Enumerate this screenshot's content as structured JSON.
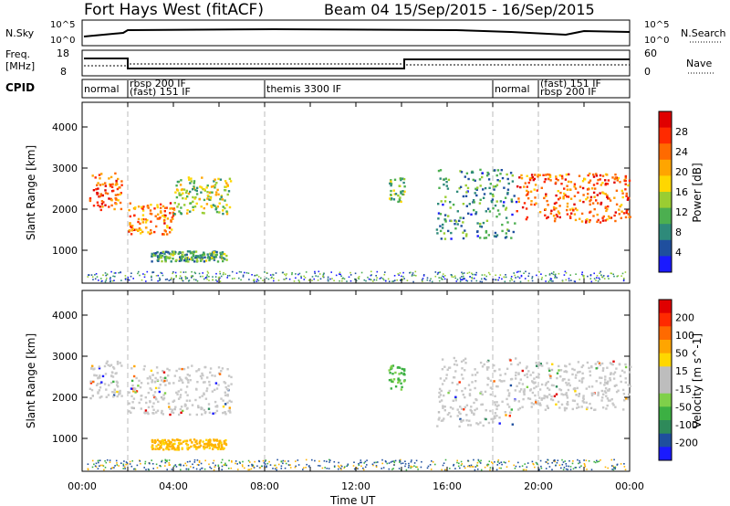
{
  "header": {
    "title": "Fort Hays West (fitACF)",
    "subtitle": "Beam 04  15/Sep/2015 - 16/Sep/2015"
  },
  "strips": {
    "nsky_label": "N.Sky",
    "nsearch_label": "N.Search",
    "left_ticks": [
      "10^5",
      "10^0"
    ],
    "right_ticks": [
      "10^5",
      "10^0"
    ],
    "freq_label": "Freq.",
    "freq_unit": "[MHz]",
    "freq_ticks": [
      "18",
      "8"
    ],
    "nave_ticks": [
      "60",
      "0"
    ],
    "nave_label": "Nave",
    "cpid_label": "CPID"
  },
  "cpid_segments": [
    {
      "label": "normal",
      "start": 0.0
    },
    {
      "label": "rbsp 200 IF",
      "start": 2.0
    },
    {
      "label": "(fast) 151 IF",
      "start": 2.0
    },
    {
      "label": "themis 3300 IF",
      "start": 8.0
    },
    {
      "label": "normal",
      "start": 18.0
    },
    {
      "label": "(fast) 151 IF",
      "start": 20.0
    },
    {
      "label": "rbsp 200 IF",
      "start": 20.0
    }
  ],
  "chart_data": [
    {
      "type": "heatmap",
      "name": "power",
      "ylabel": "Slant Range [km]",
      "xlabel": "Time UT",
      "ylim": [
        200,
        4600
      ],
      "xlim": [
        0,
        24
      ],
      "y_ticks": [
        1000,
        2000,
        3000,
        4000
      ],
      "colorbar": {
        "label": "Power [dB]",
        "ticks": [
          4,
          8,
          12,
          16,
          20,
          24,
          28
        ],
        "colors": [
          "#1a1aff",
          "#1f4f9e",
          "#2e8a7a",
          "#4caf50",
          "#9acd32",
          "#ffd700",
          "#ffa500",
          "#ff6a00",
          "#ff2a00",
          "#e00000"
        ]
      },
      "bands": [
        {
          "t": [
            0.3,
            1.7
          ],
          "range": [
            2000,
            2900
          ],
          "level": 0.8
        },
        {
          "t": [
            2.0,
            4.0
          ],
          "range": [
            1400,
            2200
          ],
          "level": 0.75
        },
        {
          "t": [
            4.0,
            6.5
          ],
          "range": [
            1900,
            2800
          ],
          "level": 0.45
        },
        {
          "t": [
            3.0,
            6.3
          ],
          "range": [
            750,
            1000
          ],
          "level": 0.3
        },
        {
          "t": [
            13.4,
            14.1
          ],
          "range": [
            2200,
            2800
          ],
          "level": 0.4
        },
        {
          "t": [
            15.5,
            19.0
          ],
          "range": [
            1300,
            3000
          ],
          "level": 0.25
        },
        {
          "t": [
            19.0,
            24.0
          ],
          "range": [
            1700,
            2900
          ],
          "level": 0.8
        }
      ]
    },
    {
      "type": "heatmap",
      "name": "velocity",
      "ylabel": "Slant Range [km]",
      "xlabel": "Time UT",
      "ylim": [
        200,
        4600
      ],
      "xlim": [
        0,
        24
      ],
      "y_ticks": [
        1000,
        2000,
        3000,
        4000
      ],
      "x_ticks": [
        "00:00",
        "04:00",
        "08:00",
        "12:00",
        "16:00",
        "20:00",
        "00:00"
      ],
      "colorbar": {
        "label": "Velocity [m s^-1]",
        "ticks": [
          "200",
          "100",
          "50",
          "15",
          "-15",
          "-50",
          "-100",
          "-200"
        ],
        "colors": [
          "#1a1aff",
          "#1f4f9e",
          "#2e8a5a",
          "#3cb043",
          "#7fd04a",
          "#bdbdbd",
          "#bdbdbd",
          "#ffd700",
          "#ffa500",
          "#ff6a00",
          "#ff2a00",
          "#e00000"
        ]
      },
      "bands": [
        {
          "t": [
            0.3,
            1.7
          ],
          "range": [
            2000,
            2900
          ],
          "level": "grey"
        },
        {
          "t": [
            2.0,
            6.5
          ],
          "range": [
            1600,
            2800
          ],
          "level": "grey"
        },
        {
          "t": [
            3.0,
            6.3
          ],
          "range": [
            750,
            1000
          ],
          "level": "orange"
        },
        {
          "t": [
            13.4,
            14.1
          ],
          "range": [
            2200,
            2800
          ],
          "level": "green"
        },
        {
          "t": [
            15.5,
            19.0
          ],
          "range": [
            1300,
            3000
          ],
          "level": "grey"
        },
        {
          "t": [
            19.0,
            24.0
          ],
          "range": [
            1700,
            2900
          ],
          "level": "grey"
        }
      ]
    }
  ]
}
